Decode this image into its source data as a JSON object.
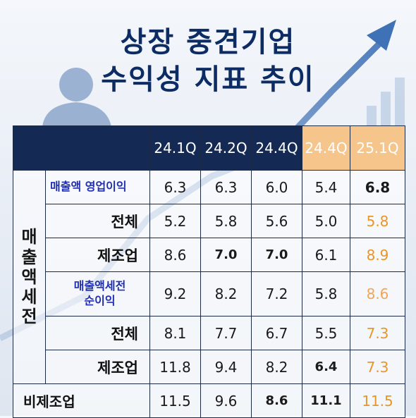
{
  "title": {
    "line1": "상장 중견기업",
    "line2": "수익성 지표 추이"
  },
  "colors": {
    "navy": "#142a55",
    "title": "#0d2c63",
    "highlight_header": "#f6c58b",
    "highlight_value": "#e8952a",
    "label_blue": "#1f2fb0"
  },
  "table": {
    "headers": [
      "24.1Q",
      "24.2Q",
      "24.4Q",
      "24.4Q",
      "25.1Q"
    ],
    "side_label": "매\n출\n액\n세\n전",
    "rows": [
      {
        "label": "매출액 영업이익",
        "values": [
          "6.3",
          "6.3",
          "6.0",
          "5.4",
          "6.8"
        ]
      },
      {
        "label": "전체",
        "values": [
          "5.2",
          "5.8",
          "5.6",
          "5.0",
          "5.8"
        ]
      },
      {
        "label": "제조업",
        "values": [
          "8.6",
          "7.0",
          "7.0",
          "6.1",
          "8.9"
        ]
      },
      {
        "label": "매출액세전\n순이익",
        "values": [
          "9.2",
          "8.2",
          "7.2",
          "5.8",
          "8.6"
        ]
      },
      {
        "label": "전체",
        "values": [
          "8.1",
          "7.7",
          "6.7",
          "5.5",
          "7.3"
        ]
      },
      {
        "label": "제조업",
        "values": [
          "11.8",
          "9.4",
          "8.2",
          "6.4",
          "7.3"
        ]
      },
      {
        "label": "비제조업",
        "values": [
          "11.5",
          "9.6",
          "8.6",
          "11.1",
          "11.5"
        ]
      }
    ]
  }
}
